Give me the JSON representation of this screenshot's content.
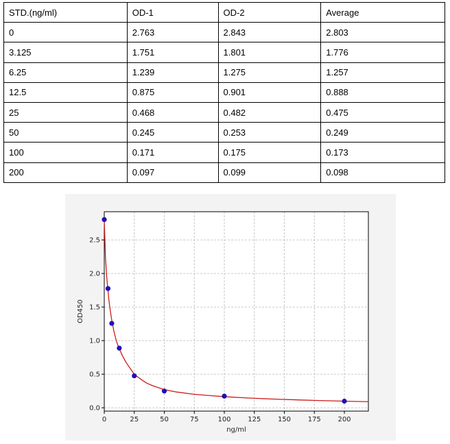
{
  "table": {
    "headers": [
      "STD.(ng/ml)",
      "OD-1",
      "OD-2",
      "Average"
    ],
    "rows": [
      [
        "0",
        "2.763",
        "2.843",
        "2.803"
      ],
      [
        "3.125",
        "1.751",
        "1.801",
        "1.776"
      ],
      [
        "6.25",
        "1.239",
        "1.275",
        "1.257"
      ],
      [
        "12.5",
        "0.875",
        "0.901",
        "0.888"
      ],
      [
        "25",
        "0.468",
        "0.482",
        "0.475"
      ],
      [
        "50",
        "0.245",
        "0.253",
        "0.249"
      ],
      [
        "100",
        "0.171",
        "0.175",
        "0.173"
      ],
      [
        "200",
        "0.097",
        "0.099",
        "0.098"
      ]
    ]
  },
  "chart_data": {
    "type": "scatter",
    "xlabel": "ng/ml",
    "ylabel": "OD450",
    "xlim": [
      0,
      220
    ],
    "ylim": [
      -0.05,
      2.92
    ],
    "xticks": [
      "0",
      "25",
      "50",
      "75",
      "100",
      "125",
      "150",
      "175",
      "200"
    ],
    "yticks": [
      "0.0",
      "0.5",
      "1.0",
      "1.5",
      "2.0",
      "2.5"
    ],
    "grid": true,
    "points": {
      "x": [
        0,
        3.125,
        6.25,
        12.5,
        25,
        50,
        100,
        200
      ],
      "y": [
        2.803,
        1.776,
        1.257,
        0.888,
        0.475,
        0.249,
        0.173,
        0.098
      ]
    },
    "fit_curve": {
      "x": [
        0,
        1,
        2,
        3,
        4,
        5,
        6,
        8,
        10,
        12,
        15,
        18,
        21,
        25,
        30,
        35,
        40,
        50,
        60,
        75,
        90,
        100,
        120,
        140,
        160,
        180,
        200,
        220
      ],
      "y": [
        2.8,
        2.24,
        1.96,
        1.76,
        1.58,
        1.45,
        1.33,
        1.14,
        1.0,
        0.9,
        0.78,
        0.68,
        0.6,
        0.5,
        0.43,
        0.37,
        0.33,
        0.27,
        0.235,
        0.2,
        0.178,
        0.165,
        0.145,
        0.13,
        0.118,
        0.107,
        0.098,
        0.09
      ]
    },
    "colors": {
      "points": "#1f10b8",
      "curve": "#cc1a1a",
      "grid": "#b8b8b8",
      "background": "#f3f3f3"
    }
  }
}
